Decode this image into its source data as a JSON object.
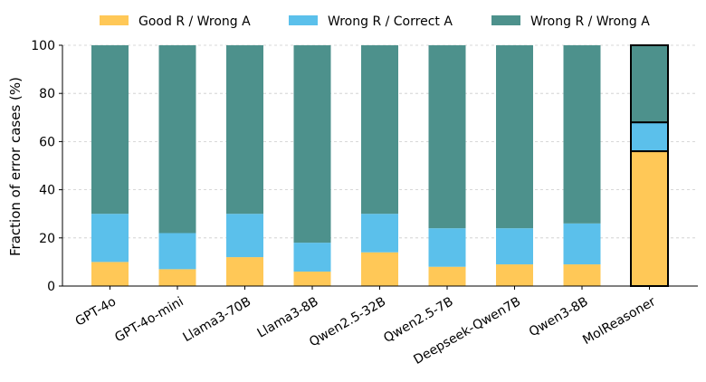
{
  "chart_data": {
    "type": "bar",
    "stacked": true,
    "categories": [
      "GPT-4o",
      "GPT-4o-mini",
      "Llama3-70B",
      "Llama3-8B",
      "Qwen2.5-32B",
      "Qwen2.5-7B",
      "Deepseek-Qwen7B",
      "Qwen3-8B",
      "MolReasoner"
    ],
    "series": [
      {
        "name": "Good R / Wrong A",
        "color": "#FFC857",
        "values": [
          10,
          7,
          12,
          6,
          14,
          8,
          9,
          9,
          56
        ]
      },
      {
        "name": "Wrong R / Correct A",
        "color": "#5BC0EB",
        "values": [
          20,
          15,
          18,
          12,
          16,
          16,
          15,
          17,
          12
        ]
      },
      {
        "name": "Wrong R / Wrong A",
        "color": "#4D918C",
        "values": [
          70,
          78,
          70,
          82,
          70,
          76,
          76,
          74,
          32
        ]
      }
    ],
    "highlighted_category": "MolReasoner",
    "title": "",
    "xlabel": "",
    "ylabel": "Fraction of error cases (%)",
    "ylim": [
      0,
      100
    ],
    "yticks": [
      0,
      20,
      40,
      60,
      80,
      100
    ],
    "grid": "horizontal dashed",
    "legend_position": "top"
  }
}
